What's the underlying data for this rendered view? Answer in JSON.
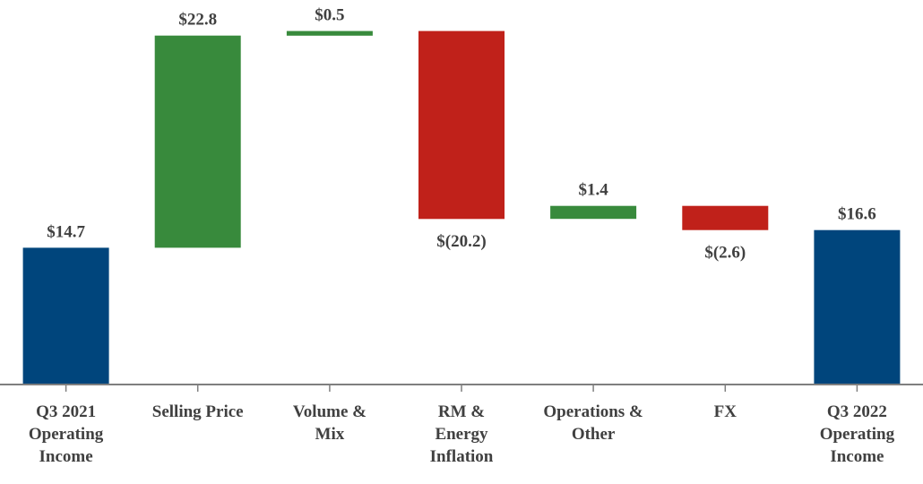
{
  "chart_data": {
    "type": "waterfall",
    "title": "",
    "xlabel": "",
    "ylabel": "",
    "ylim": [
      0,
      40
    ],
    "grid": false,
    "legend": "none",
    "colors": {
      "total": "#00457c",
      "increase": "#388a3c",
      "decrease": "#c0211a",
      "axis": "#7f7f7f",
      "text": "#404040"
    },
    "categories": [
      [
        "Q3 2021",
        "Operating",
        "Income"
      ],
      [
        "Selling Price"
      ],
      [
        "Volume &",
        "Mix"
      ],
      [
        "RM &",
        "Energy",
        "Inflation"
      ],
      [
        "Operations &",
        "Other"
      ],
      [
        "FX"
      ],
      [
        "Q3 2022",
        "Operating",
        "Income"
      ]
    ],
    "points": [
      {
        "kind": "total",
        "value": 14.7,
        "label": "$14.7"
      },
      {
        "kind": "increase",
        "value": 22.8,
        "label": "$22.8"
      },
      {
        "kind": "increase",
        "value": 0.5,
        "label": "$0.5"
      },
      {
        "kind": "decrease",
        "value": -20.2,
        "label": "$(20.2)"
      },
      {
        "kind": "increase",
        "value": 1.4,
        "label": "$1.4"
      },
      {
        "kind": "decrease",
        "value": -2.6,
        "label": "$(2.6)"
      },
      {
        "kind": "total",
        "value": 16.6,
        "label": "$16.6"
      }
    ]
  }
}
